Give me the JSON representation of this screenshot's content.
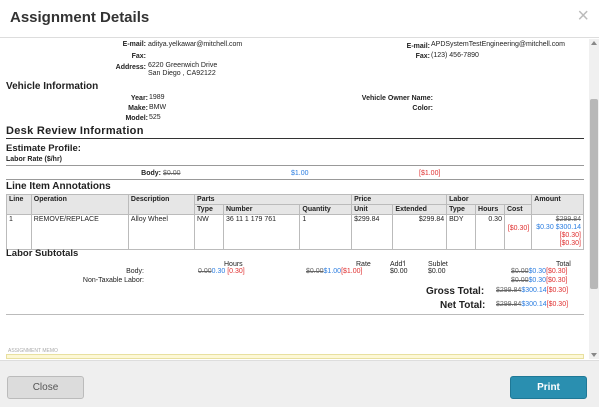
{
  "dialog": {
    "title": "Assignment Details",
    "close_glyph": "×"
  },
  "contact": {
    "email_label": "E-mail:",
    "email": "aditya.yelkawar@mitchell.com",
    "fax_label": "Fax:",
    "address_label": "Address:",
    "address_line1": "6220 Greenwich Drive",
    "address_line2": "San Diego , CA92122",
    "right_email_label": "E-mail:",
    "right_email": "APDSystemTestEngineering@mitchell.com",
    "right_fax_label": "Fax:",
    "right_fax": "(123) 456-7890"
  },
  "vehicle": {
    "heading": "Vehicle Information",
    "year_label": "Year:",
    "year": "1989",
    "make_label": "Make:",
    "make": "BMW",
    "model_label": "Model:",
    "model": "525",
    "owner_label": "Vehicle Owner Name:",
    "color_label": "Color:"
  },
  "desk_review": {
    "heading": "Desk Review Information",
    "estimate_profile": "Estimate Profile:",
    "labor_rate_label": "Labor Rate ($/hr)",
    "body_label": "Body:",
    "body_old": "$0.00",
    "body_new": "$1.00",
    "body_diff": "[$1.00]"
  },
  "annotations": {
    "heading": "Line Item Annotations",
    "groups": [
      "Line",
      "Operation",
      "Description",
      "Parts",
      "Price",
      "Labor",
      "Amount"
    ],
    "subheaders": [
      "Type",
      "Number",
      "Quantity",
      "Unit",
      "Extended",
      "Type",
      "Hours",
      "Cost"
    ],
    "row": {
      "line": "1",
      "operation": "REMOVE/REPLACE",
      "description": "Alloy Wheel",
      "part_type": "NW",
      "part_number": "36 11 1 179 761",
      "quantity": "1",
      "unit": "$299.84",
      "extended": "$299.84",
      "labor_type": "BDY",
      "hours": "0.30",
      "cost_diff": "[$0.30]",
      "amount_old": "$299.84",
      "amount_add": "$0.30",
      "amount_new": "$300.14",
      "amount_diff1": "[$0.30]",
      "amount_diff2": "[$0.30]"
    }
  },
  "labor_subtotals": {
    "heading": "Labor Subtotals",
    "col_hours": "Hours",
    "col_rate": "Rate",
    "col_addl": "Add'l",
    "col_sublet": "Sublet",
    "col_total": "Total",
    "body_label": "Body:",
    "hours_old": "0.00",
    "hours_new": "0.30",
    "hours_diff": "[0.30]",
    "rate_old": "$0.00",
    "rate_new": "$1.00",
    "rate_diff": "[$1.00]",
    "addl": "$0.00",
    "sublet": "$0.00",
    "total_old": "$0.00",
    "total_new": "$0.30",
    "total_diff": "[$0.30]",
    "nontax_label": "Non-Taxable Labor:",
    "nt_old": "$0.00",
    "nt_new": "$0.30",
    "nt_diff": "[$0.30]"
  },
  "totals": {
    "gross_label": "Gross Total:",
    "gross_old": "$299.84",
    "gross_new": "$300.14",
    "gross_diff": "[$0.30]",
    "net_label": "Net Total:",
    "net_old": "$299.84",
    "net_new": "$300.14",
    "net_diff": "[$0.30]"
  },
  "memo": {
    "label": "ASSIGNMENT MEMO"
  },
  "footer": {
    "close_label": "Close",
    "print_label": "Print"
  }
}
